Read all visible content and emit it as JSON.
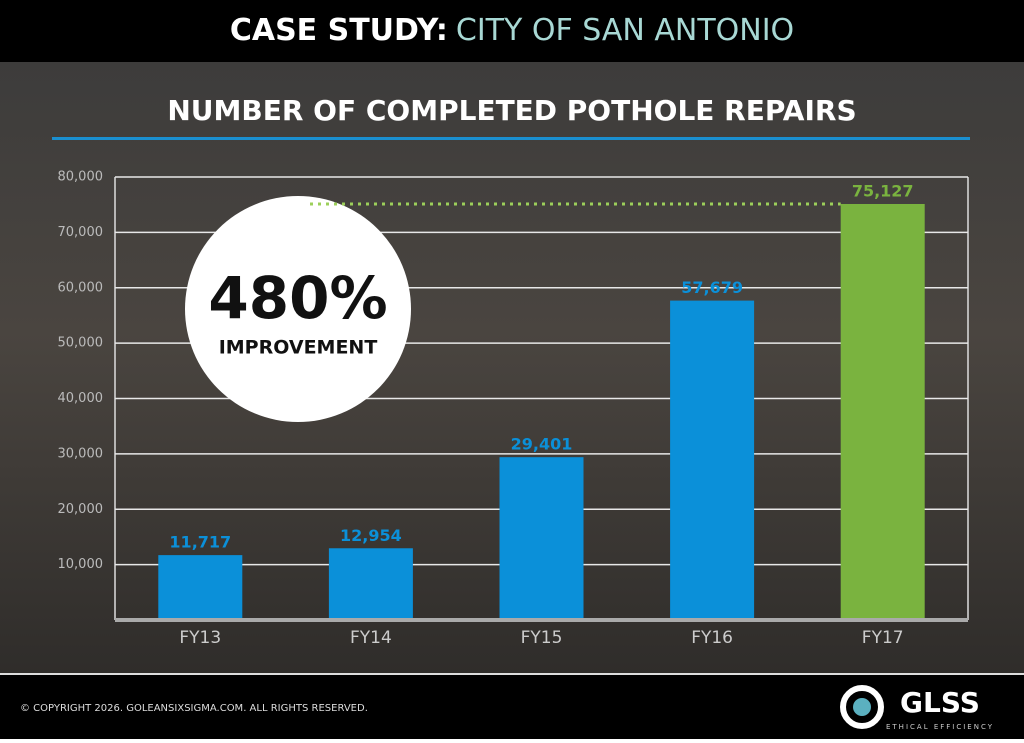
{
  "chart_data": {
    "type": "bar",
    "header": "CASE STUDY:",
    "header_highlight": "CITY OF SAN ANTONIO",
    "title": "NUMBER OF COMPLETED POTHOLE REPAIRS",
    "categories": [
      "FY13",
      "FY14",
      "FY15",
      "FY16",
      "FY17"
    ],
    "values": [
      11717,
      12954,
      29401,
      57679,
      75127
    ],
    "value_labels": [
      "11,717",
      "12,954",
      "29,401",
      "57,679",
      "75,127"
    ],
    "colors": [
      "#0b90d9",
      "#0b90d9",
      "#0b90d9",
      "#0b90d9",
      "#7ab33f"
    ],
    "ylim": [
      0,
      80000
    ],
    "yticks": [
      {
        "value": 10000,
        "label": "10,000"
      },
      {
        "value": 20000,
        "label": "20,000"
      },
      {
        "value": 30000,
        "label": "30,000"
      },
      {
        "value": 40000,
        "label": "40,000"
      },
      {
        "value": 50000,
        "label": "50,000"
      },
      {
        "value": 60000,
        "label": "60,000"
      },
      {
        "value": 70000,
        "label": "70,000"
      },
      {
        "value": 80000,
        "label": "80,000"
      }
    ],
    "grid": true,
    "annotation": "480%",
    "annotation_label": "IMPROVEMENT",
    "footer": "© COPYRIGHT 2026. GOLEANSIXSIGMA.COM. ALL RIGHTS RESERVED.",
    "logo": "GLSS",
    "logo_tagline": "ETHICAL EFFICIENCY"
  }
}
